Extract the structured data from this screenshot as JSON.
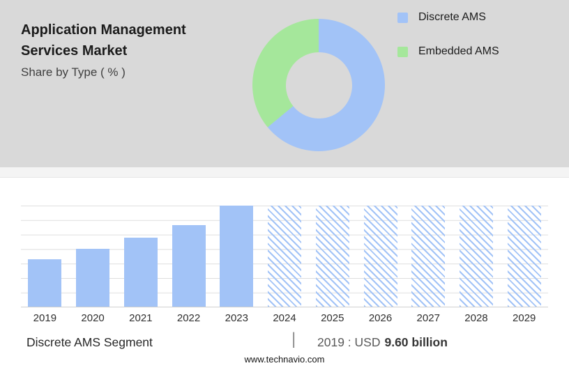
{
  "header": {
    "title_line1": "Application Management",
    "title_line2": "Services Market",
    "subtitle": "Share by Type ( % )"
  },
  "legend": {
    "items": [
      {
        "label": "Discrete AMS",
        "color": "#a2c3f7"
      },
      {
        "label": "Embedded AMS",
        "color": "#a5e79b"
      }
    ]
  },
  "chart_data": [
    {
      "type": "pie",
      "subtype": "donut",
      "title": "Share by Type ( % )",
      "labels": [
        "Discrete AMS",
        "Embedded AMS"
      ],
      "values": [
        64,
        36
      ],
      "colors": [
        "#a2c3f7",
        "#a5e79b"
      ],
      "legend_position": "right"
    },
    {
      "type": "bar",
      "categories": [
        "2019",
        "2020",
        "2021",
        "2022",
        "2023",
        "2024",
        "2025",
        "2026",
        "2027",
        "2028",
        "2029"
      ],
      "series": [
        {
          "name": "Discrete AMS",
          "values": [
            9.6,
            11.7,
            13.9,
            16.6,
            20.4,
            null,
            null,
            null,
            null,
            null,
            null
          ]
        }
      ],
      "heights_pct": [
        47,
        57,
        68,
        81,
        100,
        100,
        100,
        100,
        100,
        100,
        100
      ],
      "forecast_from_index": 5,
      "bar_color": "#a2c3f7",
      "forecast_style": "diagonal-hatch",
      "grid": true,
      "xlabel": "",
      "ylabel": "",
      "annotation": "2019 : USD 9.60 billion"
    }
  ],
  "footer": {
    "segment_label": "Discrete AMS Segment",
    "separator": "|",
    "value_prefix": "2019 : USD",
    "value_bold": "9.60 billion",
    "website": "www.technavio.com"
  }
}
